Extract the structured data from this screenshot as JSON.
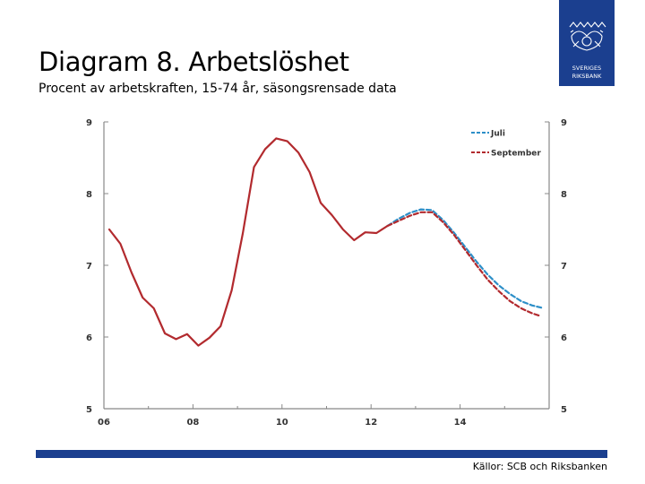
{
  "header": {
    "title": "Diagram 8. Arbetslöshet",
    "subtitle": "Procent av arbetskraften, 15-74 år, säsongsrensade data"
  },
  "logo": {
    "icon": "riksbank-crest-icon",
    "line1": "SVERIGES",
    "line2": "RIKSBANK"
  },
  "footer": {
    "source": "Källor: SCB och Riksbanken"
  },
  "colors": {
    "brand_blue": "#1b3f8f",
    "outcome_red": "#b22a2e",
    "july_blue": "#2d8fc8",
    "september_red": "#b22a2e"
  },
  "chart_data": {
    "type": "line",
    "title": "",
    "xlabel": "",
    "ylabel": "",
    "xlim": [
      2006,
      2016
    ],
    "ylim": [
      5,
      9
    ],
    "x_ticks": [
      {
        "value": 2006,
        "label": "06"
      },
      {
        "value": 2008,
        "label": "08"
      },
      {
        "value": 2010,
        "label": "10"
      },
      {
        "value": 2012,
        "label": "12"
      },
      {
        "value": 2014,
        "label": "14"
      }
    ],
    "y_ticks": [
      {
        "value": 9,
        "label": "9"
      },
      {
        "value": 8,
        "label": "8"
      },
      {
        "value": 7,
        "label": "7"
      },
      {
        "value": 6,
        "label": "6"
      },
      {
        "value": 5,
        "label": "5"
      }
    ],
    "legend_position": "top-right",
    "series": [
      {
        "style": "solid",
        "color": "#b22a2e",
        "points": [
          [
            2006.12,
            7.5
          ],
          [
            2006.37,
            7.3
          ],
          [
            2006.62,
            6.9
          ],
          [
            2006.87,
            6.55
          ],
          [
            2007.12,
            6.4
          ],
          [
            2007.37,
            6.05
          ],
          [
            2007.62,
            5.97
          ],
          [
            2007.87,
            6.04
          ],
          [
            2008.12,
            5.88
          ],
          [
            2008.37,
            5.99
          ],
          [
            2008.62,
            6.15
          ],
          [
            2008.87,
            6.65
          ],
          [
            2009.12,
            7.45
          ],
          [
            2009.37,
            8.37
          ],
          [
            2009.62,
            8.62
          ],
          [
            2009.87,
            8.77
          ],
          [
            2010.12,
            8.73
          ],
          [
            2010.37,
            8.57
          ],
          [
            2010.62,
            8.3
          ],
          [
            2010.87,
            7.87
          ],
          [
            2011.12,
            7.7
          ],
          [
            2011.37,
            7.5
          ],
          [
            2011.62,
            7.35
          ],
          [
            2011.87,
            7.46
          ],
          [
            2012.12,
            7.45
          ],
          [
            2012.37,
            7.55
          ]
        ]
      },
      {
        "name": "Juli",
        "style": "dashed",
        "color": "#2d8fc8",
        "points": [
          [
            2012.37,
            7.55
          ],
          [
            2012.62,
            7.65
          ],
          [
            2012.87,
            7.73
          ],
          [
            2013.12,
            7.78
          ],
          [
            2013.37,
            7.77
          ],
          [
            2013.62,
            7.63
          ],
          [
            2013.87,
            7.45
          ],
          [
            2014.12,
            7.25
          ],
          [
            2014.37,
            7.05
          ],
          [
            2014.62,
            6.87
          ],
          [
            2014.87,
            6.72
          ],
          [
            2015.12,
            6.6
          ],
          [
            2015.37,
            6.5
          ],
          [
            2015.62,
            6.44
          ],
          [
            2015.82,
            6.41
          ]
        ]
      },
      {
        "name": "September",
        "style": "dashed",
        "color": "#b22a2e",
        "points": [
          [
            2012.37,
            7.55
          ],
          [
            2012.62,
            7.62
          ],
          [
            2012.87,
            7.69
          ],
          [
            2013.12,
            7.74
          ],
          [
            2013.37,
            7.74
          ],
          [
            2013.62,
            7.6
          ],
          [
            2013.87,
            7.42
          ],
          [
            2014.12,
            7.21
          ],
          [
            2014.37,
            7.0
          ],
          [
            2014.62,
            6.8
          ],
          [
            2014.87,
            6.64
          ],
          [
            2015.12,
            6.5
          ],
          [
            2015.37,
            6.4
          ],
          [
            2015.62,
            6.33
          ],
          [
            2015.82,
            6.29
          ]
        ]
      }
    ]
  }
}
